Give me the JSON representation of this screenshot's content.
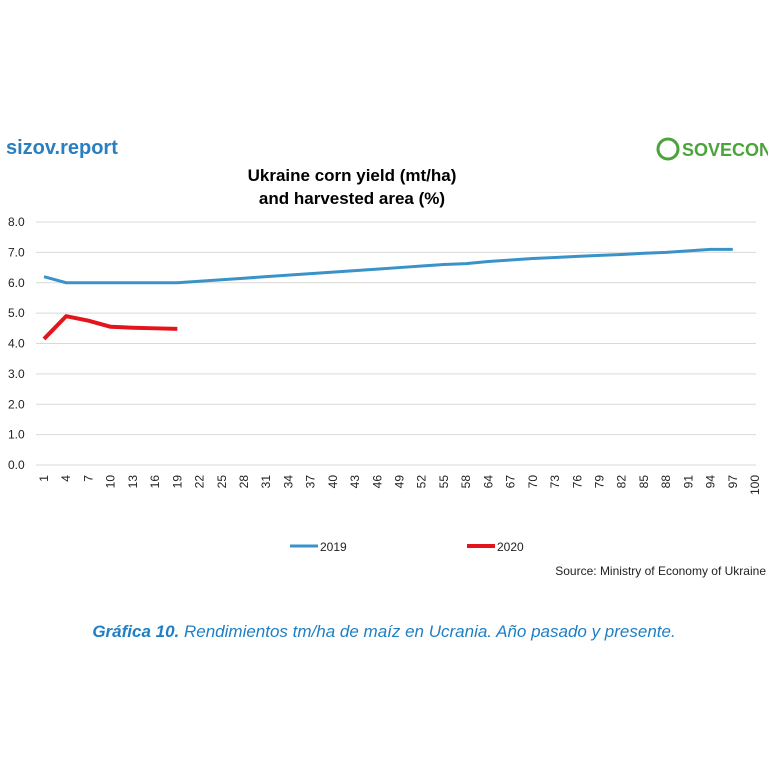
{
  "header": {
    "brand": "sizov.report",
    "logo": "SOVECON"
  },
  "chart_data": {
    "type": "line",
    "title": [
      "Ukraine corn yield (mt/ha)",
      "and harvested area (%)"
    ],
    "categories": [
      "1",
      "4",
      "7",
      "10",
      "13",
      "16",
      "19",
      "22",
      "25",
      "28",
      "31",
      "34",
      "37",
      "40",
      "43",
      "46",
      "49",
      "52",
      "55",
      "58",
      "64",
      "67",
      "70",
      "73",
      "76",
      "79",
      "82",
      "85",
      "88",
      "91",
      "94",
      "97",
      "100"
    ],
    "series": [
      {
        "name": "2019",
        "color": "#3a93c8",
        "values": [
          6.2,
          6.0,
          6.0,
          6.0,
          6.0,
          6.0,
          6.0,
          6.05,
          6.1,
          6.15,
          6.2,
          6.25,
          6.3,
          6.35,
          6.4,
          6.45,
          6.5,
          6.55,
          6.6,
          6.63,
          6.7,
          6.75,
          6.8,
          6.83,
          6.87,
          6.9,
          6.93,
          6.97,
          7.0,
          7.05,
          7.1,
          7.1,
          null
        ]
      },
      {
        "name": "2020",
        "color": "#e3141b",
        "values": [
          4.15,
          4.9,
          4.75,
          4.55,
          4.52,
          4.5,
          4.48,
          null,
          null,
          null,
          null,
          null,
          null,
          null,
          null,
          null,
          null,
          null,
          null,
          null,
          null,
          null,
          null,
          null,
          null,
          null,
          null,
          null,
          null,
          null,
          null,
          null,
          null
        ]
      }
    ],
    "ylim": [
      0,
      8
    ],
    "yticks": [
      {
        "value": 0,
        "label": "0.0"
      },
      {
        "value": 1,
        "label": "1.0"
      },
      {
        "value": 2,
        "label": "2.0"
      },
      {
        "value": 3,
        "label": "3.0"
      },
      {
        "value": 4,
        "label": "4.0"
      },
      {
        "value": 5,
        "label": "5.0"
      },
      {
        "value": 6,
        "label": "6.0"
      },
      {
        "value": 7,
        "label": "7.0"
      },
      {
        "value": 8,
        "label": "8.0"
      }
    ],
    "grid": true,
    "source": "Source:  Ministry of Economy of Ukraine"
  },
  "caption": {
    "label": "Gráfica 10.",
    "text": " Rendimientos tm/ha de maíz en Ucrania. Año pasado y presente."
  }
}
